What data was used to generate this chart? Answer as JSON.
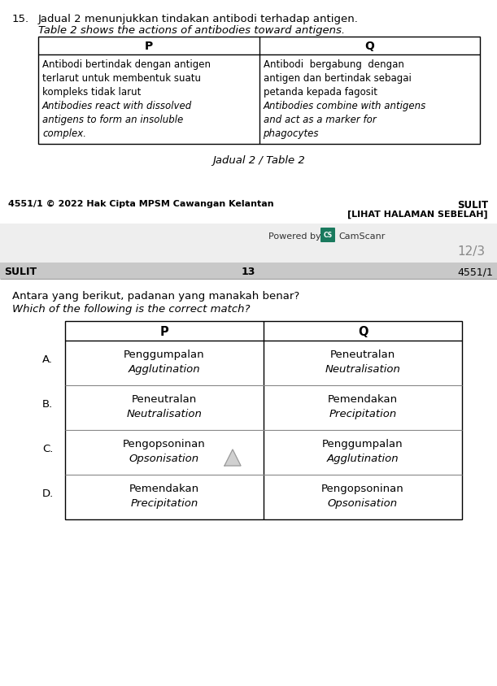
{
  "bg_color": "#ffffff",
  "question_number": "15.",
  "q_text_malay": "Jadual 2 menunjukkan tindakan antibodi terhadap antigen.",
  "q_text_english": "Table 2 shows the actions of antibodies toward antigens.",
  "table1_caption": "Jadual 2 / Table 2",
  "table1_header": [
    "P",
    "Q"
  ],
  "table1_p_lines": [
    "Antibodi bertindak dengan antigen",
    "terlarut untuk membentuk suatu",
    "kompleks tidak larut",
    "Antibodies react with dissolved",
    "antigens to form an insoluble",
    "complex."
  ],
  "table1_p_italic": [
    false,
    false,
    false,
    true,
    true,
    true
  ],
  "table1_q_lines": [
    "Antibodi  bergabung  dengan",
    "antigen dan bertindak sebagai",
    "petanda kepada fagosit",
    "Antibodies combine with antigens",
    "and act as a marker for",
    "phagocytes"
  ],
  "table1_q_italic": [
    false,
    false,
    false,
    true,
    true,
    true
  ],
  "footer_left": "4551/1 © 2022 Hak Cipta MPSM Cawangan Kelantan",
  "footer_right_top": "SULIT",
  "footer_right_bot": "[LIHAT HALAMAN SEBELAH]",
  "camscanner_text": "Powered by",
  "page_number": "12/3",
  "page_header_left": "SULIT",
  "page_header_center": "13",
  "page_header_right": "4551/1",
  "q2_malay": "Antara yang berikut, padanan yang manakah benar?",
  "q2_english": "Which of the following is the correct match?",
  "table2_header": [
    "P",
    "Q"
  ],
  "table2_options": [
    {
      "label": "A.",
      "p_line1": "Penggumpalan",
      "p_line2": "Agglutination",
      "q_line1": "Peneutralan",
      "q_line2": "Neutralisation",
      "has_arrow": false
    },
    {
      "label": "B.",
      "p_line1": "Peneutralan",
      "p_line2": "Neutralisation",
      "q_line1": "Pemendakan",
      "q_line2": "Precipitation",
      "has_arrow": false
    },
    {
      "label": "C.",
      "p_line1": "Pengopsoninan",
      "p_line2": "Opsonisation",
      "q_line1": "Penggumpalan",
      "q_line2": "Agglutination",
      "has_arrow": true
    },
    {
      "label": "D.",
      "p_line1": "Pemendakan",
      "p_line2": "Precipitation",
      "q_line1": "Pengopsoninan",
      "q_line2": "Opsonisation",
      "has_arrow": false
    }
  ]
}
